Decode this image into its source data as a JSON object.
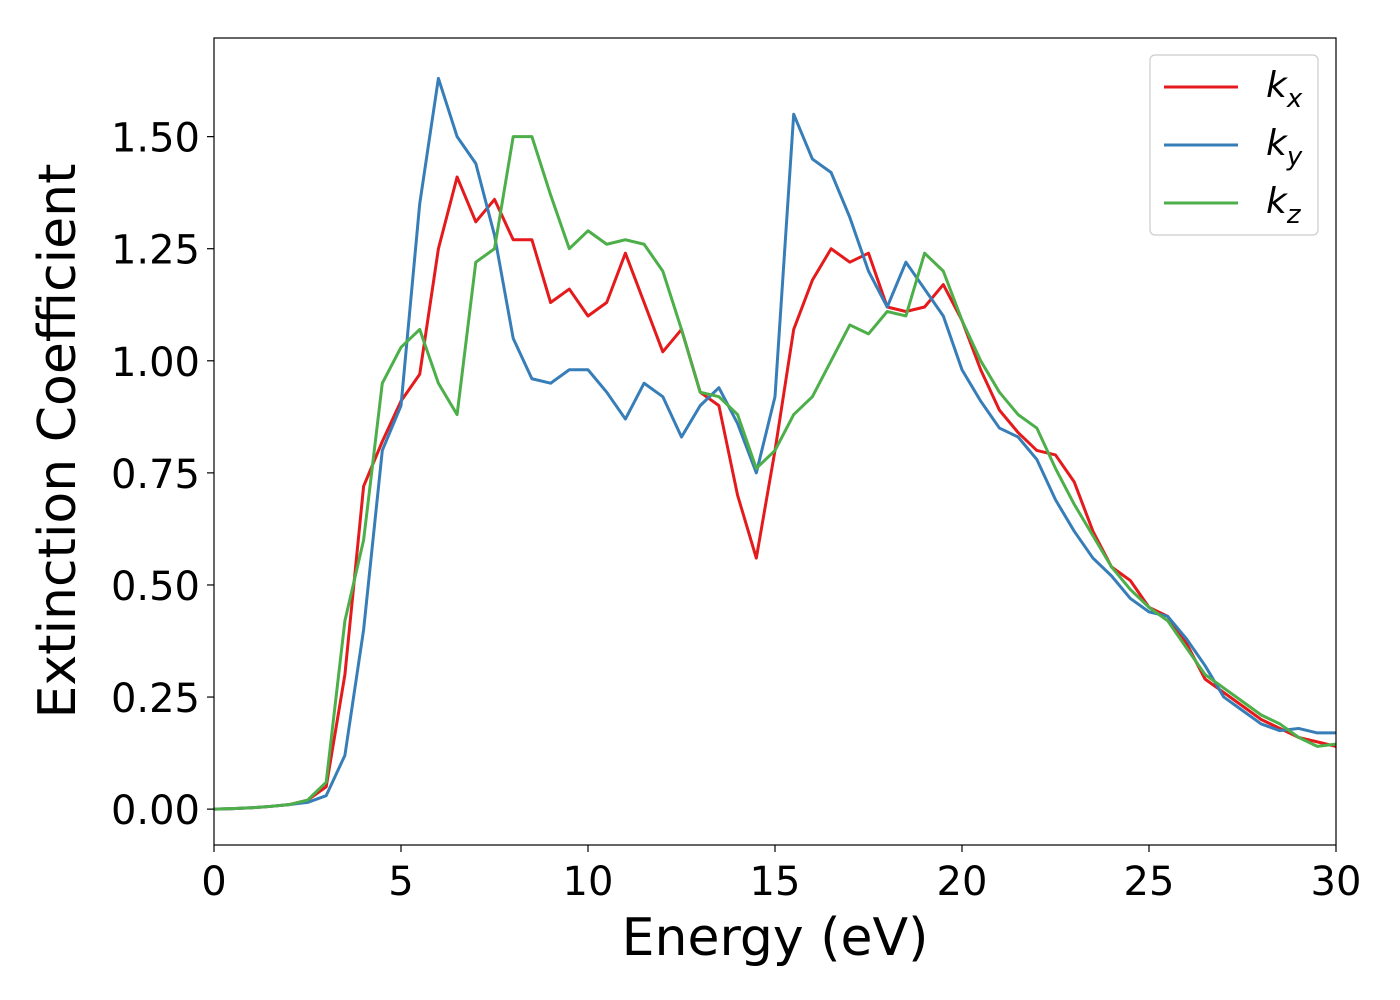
{
  "chart_data": {
    "type": "line",
    "x_label": "Energy (eV)",
    "y_label": "Extinction Coefficient",
    "x": [
      0,
      0.5,
      1,
      1.5,
      2,
      2.5,
      3,
      3.5,
      4,
      4.5,
      5,
      5.5,
      6,
      6.5,
      7,
      7.5,
      8,
      8.5,
      9,
      9.5,
      10,
      10.5,
      11,
      11.5,
      12,
      12.5,
      13,
      13.5,
      14,
      14.5,
      15,
      15.5,
      16,
      16.5,
      17,
      17.5,
      18,
      18.5,
      19,
      19.5,
      20,
      20.5,
      21,
      21.5,
      22,
      22.5,
      23,
      23.5,
      24,
      24.5,
      25,
      25.5,
      26,
      26.5,
      27,
      27.5,
      28,
      28.5,
      29,
      29.5,
      30
    ],
    "series": [
      {
        "name": "k_x",
        "color": "#e41a1c",
        "values": [
          0,
          0.001,
          0.003,
          0.006,
          0.01,
          0.02,
          0.05,
          0.3,
          0.72,
          0.82,
          0.91,
          0.97,
          1.25,
          1.41,
          1.31,
          1.36,
          1.27,
          1.27,
          1.13,
          1.16,
          1.1,
          1.13,
          1.24,
          1.13,
          1.02,
          1.07,
          0.93,
          0.9,
          0.7,
          0.56,
          0.8,
          1.07,
          1.18,
          1.25,
          1.22,
          1.24,
          1.12,
          1.11,
          1.12,
          1.17,
          1.09,
          0.98,
          0.89,
          0.84,
          0.8,
          0.79,
          0.73,
          0.62,
          0.54,
          0.51,
          0.45,
          0.43,
          0.37,
          0.29,
          0.26,
          0.23,
          0.2,
          0.18,
          0.16,
          0.15,
          0.14
        ]
      },
      {
        "name": "k_y",
        "color": "#377eb8",
        "values": [
          0,
          0.001,
          0.003,
          0.006,
          0.01,
          0.015,
          0.03,
          0.12,
          0.4,
          0.8,
          0.9,
          1.35,
          1.63,
          1.5,
          1.44,
          1.28,
          1.05,
          0.96,
          0.95,
          0.98,
          0.98,
          0.93,
          0.87,
          0.95,
          0.92,
          0.83,
          0.9,
          0.94,
          0.86,
          0.75,
          0.92,
          1.55,
          1.45,
          1.42,
          1.32,
          1.2,
          1.12,
          1.22,
          1.16,
          1.1,
          0.98,
          0.91,
          0.85,
          0.83,
          0.78,
          0.69,
          0.62,
          0.56,
          0.52,
          0.47,
          0.44,
          0.43,
          0.38,
          0.32,
          0.25,
          0.22,
          0.19,
          0.175,
          0.18,
          0.17,
          0.17
        ]
      },
      {
        "name": "k_z",
        "color": "#4daf4a",
        "values": [
          0,
          0.001,
          0.003,
          0.006,
          0.01,
          0.02,
          0.06,
          0.42,
          0.6,
          0.95,
          1.03,
          1.07,
          0.95,
          0.88,
          1.22,
          1.25,
          1.5,
          1.5,
          1.37,
          1.25,
          1.29,
          1.26,
          1.27,
          1.26,
          1.2,
          1.07,
          0.93,
          0.92,
          0.88,
          0.76,
          0.8,
          0.88,
          0.92,
          1.0,
          1.08,
          1.06,
          1.11,
          1.1,
          1.24,
          1.2,
          1.09,
          1.0,
          0.93,
          0.88,
          0.85,
          0.76,
          0.68,
          0.61,
          0.54,
          0.49,
          0.45,
          0.42,
          0.36,
          0.3,
          0.27,
          0.24,
          0.21,
          0.19,
          0.16,
          0.14,
          0.145
        ]
      }
    ],
    "xlim": [
      0,
      30
    ],
    "ylim": [
      -0.08,
      1.72
    ],
    "xticks": [
      0,
      5,
      10,
      15,
      20,
      25,
      30
    ],
    "yticks": [
      {
        "value": 0,
        "label": "0.00"
      },
      {
        "value": 0.25,
        "label": "0.25"
      },
      {
        "value": 0.5,
        "label": "0.50"
      },
      {
        "value": 0.75,
        "label": "0.75"
      },
      {
        "value": 1.0,
        "label": "1.00"
      },
      {
        "value": 1.25,
        "label": "1.25"
      },
      {
        "value": 1.5,
        "label": "1.50"
      }
    ],
    "grid": false,
    "legend": "upper right"
  }
}
